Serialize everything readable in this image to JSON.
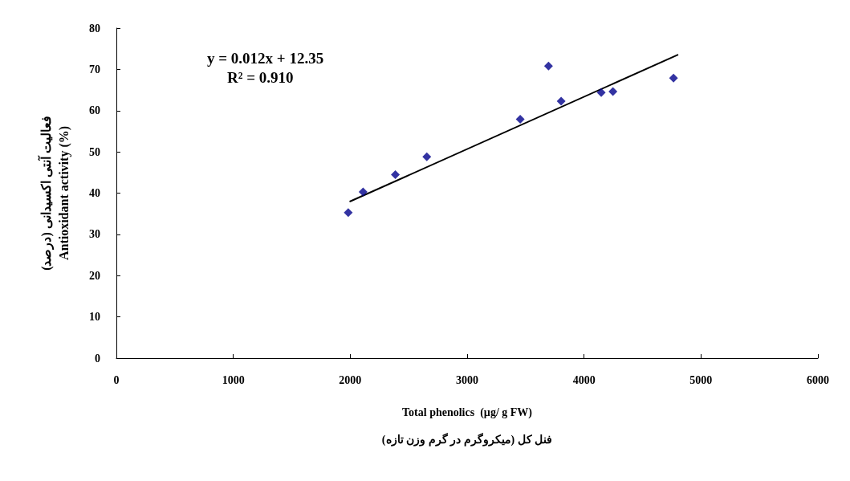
{
  "chart_data": {
    "type": "scatter",
    "xlabel": "Total phenolics  (µg/ g FW)\nفنل کل (میکروگرم در گرم وزن تازه)",
    "ylabel": "فعالیت آنتی اکسیدانی (درصد)\nAntioxidant activity (%)",
    "annotations": [
      "y = 0.012x + 12.35",
      "R² = 0.910"
    ],
    "series": [
      {
        "color": "#00008b",
        "marker": "diamond",
        "x": [
          1983,
          2110,
          2386,
          2655,
          3454,
          3696,
          3804,
          4147,
          4247,
          4765
        ],
        "values": [
          35.3,
          40.3,
          44.5,
          48.8,
          57.9,
          70.8,
          62.3,
          64.4,
          64.6,
          67.9
        ]
      },
      {
        "type": "line",
        "color": "#000000",
        "marker": "none",
        "line_style": "solid",
        "x": [
          2000,
          4800
        ],
        "values": [
          38,
          73.5
        ]
      }
    ],
    "xlim": [
      0,
      6000
    ],
    "xticks": [
      0,
      1000,
      2000,
      3000,
      4000,
      5000,
      6000
    ],
    "ylim": [
      0,
      80
    ],
    "yticks": [
      0,
      10,
      20,
      30,
      40,
      50,
      60,
      70,
      80
    ],
    "grid": false
  }
}
